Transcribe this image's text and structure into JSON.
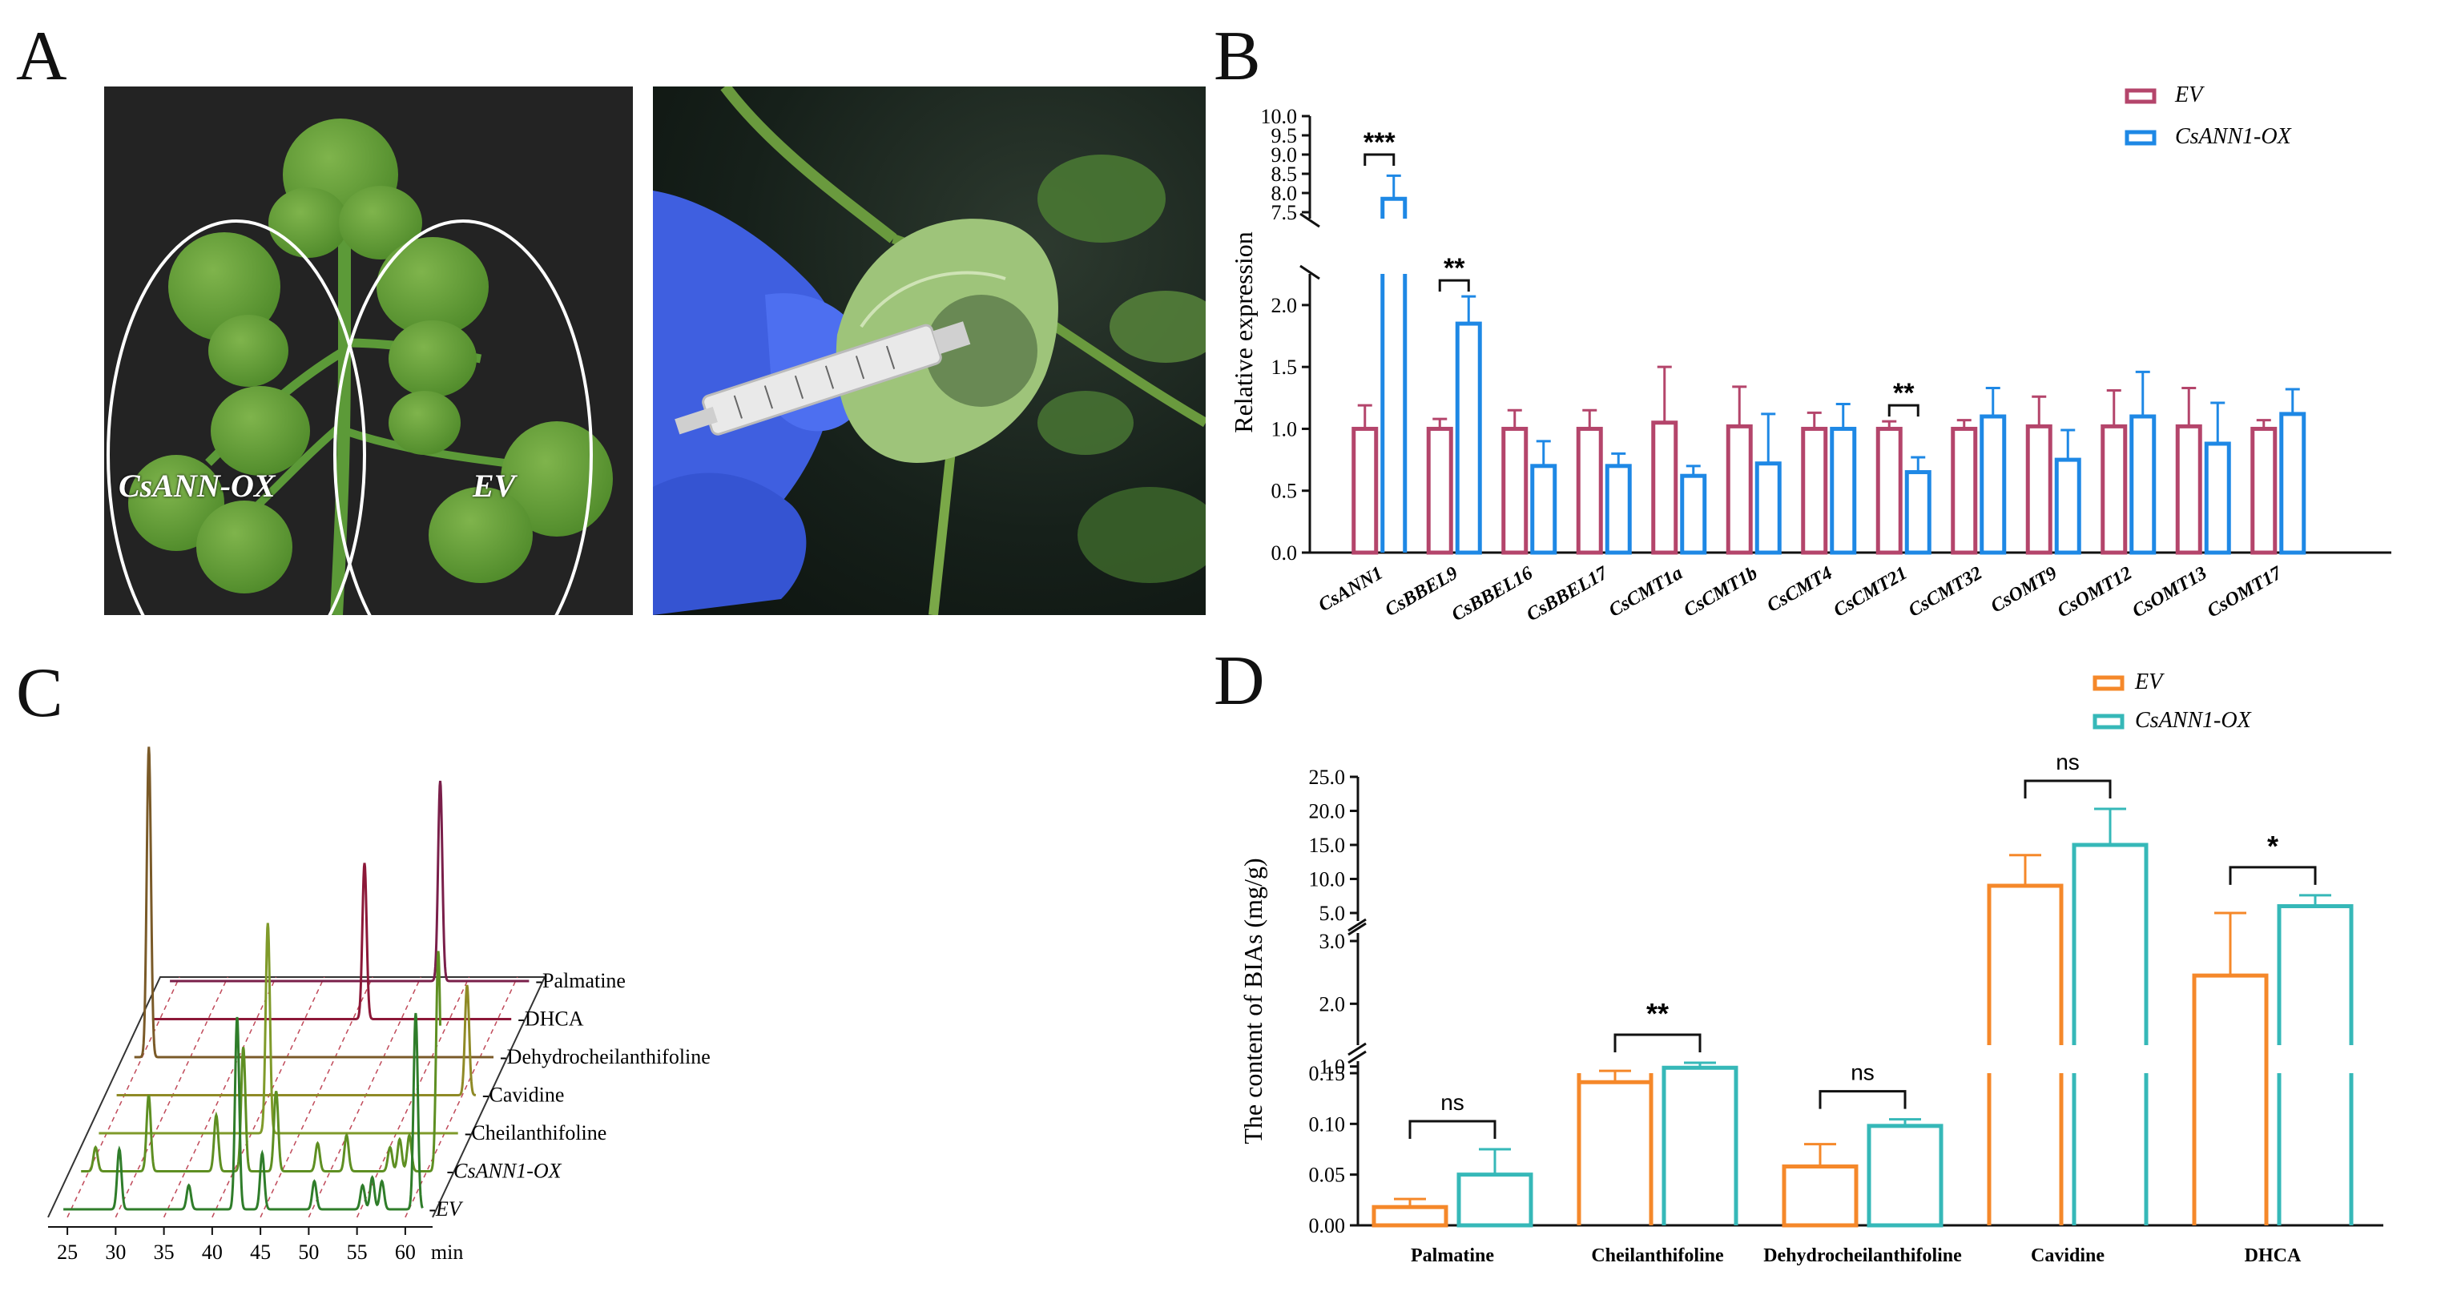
{
  "panel_letters": {
    "a": "A",
    "b": "B",
    "c": "C",
    "d": "D"
  },
  "photo_a": {
    "label_left": "CsANN-OX",
    "label_right": "EV"
  },
  "colors": {
    "ev_b": "#b4456b",
    "ox_b": "#1e88e5",
    "ev_d": "#f5882a",
    "ox_d": "#36b8b8",
    "chrom_palmatine": "#7a1f4a",
    "chrom_dhca": "#8c1838",
    "chrom_dehydro": "#7a5a28",
    "chrom_cavidine": "#8f8a26",
    "chrom_cheil": "#7f9a2a",
    "chrom_ox": "#5e8f22",
    "chrom_ev": "#2f7d2a"
  },
  "chart_data": [
    {
      "id": "B",
      "type": "bar",
      "ylabel": "Relative expression",
      "categories": [
        "CsANN1",
        "CsBBEL9",
        "CsBBEL16",
        "CsBBEL17",
        "CsCMT1a",
        "CsCMT1b",
        "CsCMT4",
        "CsCMT21",
        "CsCMT32",
        "CsOMT9",
        "CsOMT12",
        "CsOMT13",
        "CsOMT17"
      ],
      "series": [
        {
          "name": "EV",
          "values": [
            1.0,
            1.0,
            1.0,
            1.0,
            1.05,
            1.02,
            1.0,
            1.0,
            1.0,
            1.02,
            1.02,
            1.02,
            1.0
          ],
          "errors": [
            0.19,
            0.08,
            0.15,
            0.15,
            0.45,
            0.32,
            0.13,
            0.06,
            0.07,
            0.24,
            0.29,
            0.31,
            0.07
          ]
        },
        {
          "name": "CsANN1-OX",
          "values": [
            7.85,
            1.85,
            0.7,
            0.7,
            0.62,
            0.72,
            1.0,
            0.65,
            1.1,
            0.75,
            1.1,
            0.88,
            1.12
          ],
          "errors": [
            0.6,
            0.22,
            0.2,
            0.1,
            0.08,
            0.4,
            0.2,
            0.12,
            0.23,
            0.24,
            0.36,
            0.33,
            0.2
          ]
        }
      ],
      "axis": {
        "lower_range": [
          0,
          2.2
        ],
        "lower_ticks": [
          "0.0",
          "0.5",
          "1.0",
          "1.5",
          "2.0"
        ],
        "upper_range": [
          7.5,
          10.0
        ],
        "upper_ticks": [
          "7.5",
          "8.0",
          "8.5",
          "9.0",
          "9.5",
          "10.0"
        ],
        "break": true
      },
      "significance": [
        {
          "category": "CsANN1",
          "label": "***"
        },
        {
          "category": "CsBBEL9",
          "label": "**"
        },
        {
          "category": "CsCMT21",
          "label": "**"
        }
      ],
      "legend": "top-right"
    },
    {
      "id": "C",
      "type": "line",
      "xlabel": "min",
      "x_ticks": [
        "25",
        "30",
        "35",
        "40",
        "45",
        "50",
        "55",
        "60"
      ],
      "x_range": [
        23,
        62
      ],
      "traces": [
        {
          "name": "Palmatine",
          "peaks": [
            {
              "x": 52.0,
              "h": 1.0
            }
          ]
        },
        {
          "name": "DHCA",
          "peaks": [
            {
              "x": 46.0,
              "h": 0.78
            }
          ]
        },
        {
          "name": "Dehydrocheilanthifoline",
          "peaks": [
            {
              "x": 25.5,
              "h": 1.55
            }
          ]
        },
        {
          "name": "Cavidine",
          "peaks": [
            {
              "x": 60.3,
              "h": 0.55
            }
          ]
        },
        {
          "name": "Cheilanthifoline",
          "peaks": [
            {
              "x": 41.5,
              "h": 1.05
            }
          ]
        },
        {
          "name": "CsANN1-OX",
          "peaks": [
            {
              "x": 25.5,
              "h": 0.12
            },
            {
              "x": 31.0,
              "h": 0.38
            },
            {
              "x": 38.0,
              "h": 0.28
            },
            {
              "x": 40.8,
              "h": 0.62
            },
            {
              "x": 44.2,
              "h": 0.4
            },
            {
              "x": 48.5,
              "h": 0.14
            },
            {
              "x": 51.5,
              "h": 0.18
            },
            {
              "x": 56.0,
              "h": 0.12
            },
            {
              "x": 57.0,
              "h": 0.16
            },
            {
              "x": 58.0,
              "h": 0.18
            },
            {
              "x": 61.0,
              "h": 1.1
            }
          ]
        },
        {
          "name": "EV",
          "peaks": [
            {
              "x": 29.8,
              "h": 0.3
            },
            {
              "x": 37.0,
              "h": 0.12
            },
            {
              "x": 42.0,
              "h": 0.96
            },
            {
              "x": 44.6,
              "h": 0.28
            },
            {
              "x": 50.0,
              "h": 0.14
            },
            {
              "x": 55.0,
              "h": 0.12
            },
            {
              "x": 56.0,
              "h": 0.16
            },
            {
              "x": 57.0,
              "h": 0.14
            },
            {
              "x": 60.5,
              "h": 0.98
            }
          ]
        }
      ]
    },
    {
      "id": "D",
      "type": "bar",
      "ylabel": "The content of BIAs (mg/g)",
      "categories": [
        "Palmatine",
        "Cheilanthifoline",
        "Dehydrocheilanthifoline",
        "Cavidine",
        "DHCA"
      ],
      "series": [
        {
          "name": "EV",
          "values": [
            0.018,
            0.75,
            0.058,
            9.0,
            2.45
          ],
          "errors": [
            0.008,
            0.18,
            0.022,
            4.5,
            0.9
          ]
        },
        {
          "name": "CsANN1-OX",
          "values": [
            0.05,
            0.98,
            0.098,
            15.0,
            6.0
          ],
          "errors": [
            0.025,
            0.08,
            0.06,
            5.3,
            1.6
          ]
        }
      ],
      "axis": {
        "segments": [
          {
            "range": [
              0,
              0.15
            ],
            "ticks": [
              "0.00",
              "0.05",
              "0.10",
              "0.15"
            ]
          },
          {
            "range": [
              0,
              3.0
            ],
            "ticks": [
              "1.0",
              "2.0",
              "3.0"
            ]
          },
          {
            "range": [
              5,
              25
            ],
            "ticks": [
              "5.0",
              "10.0",
              "15.0",
              "20.0",
              "25.0"
            ]
          }
        ],
        "break": true
      },
      "significance": [
        {
          "category": "Palmatine",
          "label": "ns"
        },
        {
          "category": "Cheilanthifoline",
          "label": "**"
        },
        {
          "category": "Dehydrocheilanthifoline",
          "label": "ns"
        },
        {
          "category": "Cavidine",
          "label": "ns"
        },
        {
          "category": "DHCA",
          "label": "*"
        }
      ],
      "legend": "top-right"
    }
  ]
}
